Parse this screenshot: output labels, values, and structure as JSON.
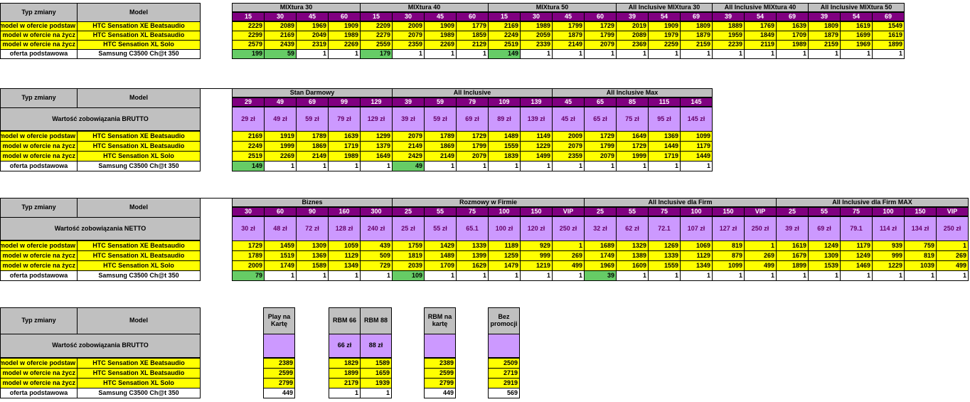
{
  "rowlabels": {
    "typ_zmiany": "Typ zmiany",
    "model": "Model",
    "wartosc_brutto": "Wartość zobowiązania BRUTTO",
    "wartosc_netto": "Wartość zobowiązania NETTO",
    "row1_type": "y model w ofercie podstaw",
    "row2_type": "y model w ofercie na życz",
    "row3_type": "y model w ofercie na życz",
    "row4_type": "oferta podstawowa",
    "row1_model": "HTC Sensation XE Beatsaudio",
    "row2_model": "HTC Sensation XL Beatsaudio",
    "row3_model": "HTC Sensation XL Solo",
    "row4_model": "Samsung C3500 Ch@t 350"
  },
  "s1": {
    "groups": [
      "MIXtura 30",
      "MIXtura 40",
      "MIXtura 50",
      "All Inclusive MIXtura 30",
      "All Inclusive MIXtura 40",
      "All Inclusive MIXtura 50"
    ],
    "cols": [
      "15",
      "30",
      "45",
      "60",
      "15",
      "30",
      "45",
      "60",
      "15",
      "30",
      "45",
      "60",
      "39",
      "54",
      "69",
      "39",
      "54",
      "69",
      "39",
      "54",
      "69"
    ],
    "rows": [
      [
        "2229",
        "2089",
        "1969",
        "1909",
        "2209",
        "2009",
        "1909",
        "1779",
        "2169",
        "1989",
        "1799",
        "1729",
        "2019",
        "1909",
        "1809",
        "1889",
        "1769",
        "1639",
        "1809",
        "1619",
        "1549"
      ],
      [
        "2299",
        "2169",
        "2049",
        "1989",
        "2279",
        "2079",
        "1989",
        "1859",
        "2249",
        "2059",
        "1879",
        "1799",
        "2089",
        "1979",
        "1879",
        "1959",
        "1849",
        "1709",
        "1879",
        "1699",
        "1619"
      ],
      [
        "2579",
        "2439",
        "2319",
        "2269",
        "2559",
        "2359",
        "2269",
        "2129",
        "2519",
        "2339",
        "2149",
        "2079",
        "2369",
        "2259",
        "2159",
        "2239",
        "2119",
        "1989",
        "2159",
        "1969",
        "1899"
      ],
      [
        "199",
        "59",
        "1",
        "1",
        "179",
        "1",
        "1",
        "1",
        "149",
        "1",
        "1",
        "1",
        "1",
        "1",
        "1",
        "1",
        "1",
        "1",
        "1",
        "1",
        "1"
      ]
    ]
  },
  "s2": {
    "groups": [
      "Stan Darmowy",
      "All Inclusive",
      "All Inclusive Max"
    ],
    "cols": [
      "29",
      "49",
      "69",
      "99",
      "129",
      "39",
      "59",
      "79",
      "109",
      "139",
      "45",
      "65",
      "85",
      "115",
      "145"
    ],
    "prices": [
      "29 zł",
      "49 zł",
      "59 zł",
      "79 zł",
      "129 zł",
      "39 zł",
      "59 zł",
      "69 zł",
      "89 zł",
      "139 zł",
      "45 zł",
      "65 zł",
      "75 zł",
      "95 zł",
      "145 zł"
    ],
    "rows": [
      [
        "2169",
        "1919",
        "1789",
        "1639",
        "1299",
        "2079",
        "1789",
        "1729",
        "1489",
        "1149",
        "2009",
        "1729",
        "1649",
        "1369",
        "1099"
      ],
      [
        "2249",
        "1999",
        "1869",
        "1719",
        "1379",
        "2149",
        "1869",
        "1799",
        "1559",
        "1229",
        "2079",
        "1799",
        "1729",
        "1449",
        "1179"
      ],
      [
        "2519",
        "2269",
        "2149",
        "1989",
        "1649",
        "2429",
        "2149",
        "2079",
        "1839",
        "1499",
        "2359",
        "2079",
        "1999",
        "1719",
        "1449"
      ],
      [
        "149",
        "1",
        "1",
        "1",
        "1",
        "49",
        "1",
        "1",
        "1",
        "1",
        "1",
        "1",
        "1",
        "1",
        "1"
      ]
    ]
  },
  "s3": {
    "groups": [
      "Biznes",
      "Rozmowy w Firmie",
      "All Inclusive dla Firm",
      "All Inclusive dla Firm MAX"
    ],
    "cols": [
      "30",
      "60",
      "90",
      "160",
      "300",
      "25",
      "55",
      "75",
      "100",
      "150",
      "VIP",
      "25",
      "55",
      "75",
      "100",
      "150",
      "VIP",
      "25",
      "55",
      "75",
      "100",
      "150",
      "VIP"
    ],
    "prices": [
      "30 zł",
      "48 zł",
      "72 zł",
      "128 zł",
      "240 zł",
      "25 zł",
      "55 zł",
      "65.1",
      "100 zł",
      "120 zł",
      "250 zł",
      "32 zł",
      "62 zł",
      "72.1",
      "107 zł",
      "127 zł",
      "250 zł",
      "39 zł",
      "69 zł",
      "79.1",
      "114 zł",
      "134 zł",
      "250 zł"
    ],
    "rows": [
      [
        "1729",
        "1459",
        "1309",
        "1059",
        "439",
        "1759",
        "1429",
        "1339",
        "1189",
        "929",
        "1",
        "1689",
        "1329",
        "1269",
        "1069",
        "819",
        "1",
        "1619",
        "1249",
        "1179",
        "939",
        "759",
        "1"
      ],
      [
        "1789",
        "1519",
        "1369",
        "1129",
        "509",
        "1819",
        "1489",
        "1399",
        "1259",
        "999",
        "269",
        "1749",
        "1389",
        "1339",
        "1129",
        "879",
        "269",
        "1679",
        "1309",
        "1249",
        "999",
        "819",
        "269"
      ],
      [
        "2009",
        "1749",
        "1589",
        "1349",
        "729",
        "2039",
        "1709",
        "1629",
        "1479",
        "1219",
        "499",
        "1969",
        "1609",
        "1559",
        "1349",
        "1099",
        "499",
        "1899",
        "1539",
        "1469",
        "1229",
        "1039",
        "499"
      ],
      [
        "79",
        "1",
        "1",
        "1",
        "1",
        "109",
        "1",
        "1",
        "1",
        "1",
        "1",
        "39",
        "1",
        "1",
        "1",
        "1",
        "1",
        "1",
        "1",
        "1",
        "1",
        "1",
        "1"
      ]
    ]
  },
  "s4": {
    "cols": [
      "Play na Kartę",
      "RBM 66",
      "RBM 88",
      "RBM na kartę",
      "Bez promocji"
    ],
    "prices": [
      "",
      "66 zł",
      "88 zł",
      "",
      ""
    ],
    "rows": [
      [
        "2389",
        "1829",
        "1589",
        "2389",
        "2509"
      ],
      [
        "2599",
        "1899",
        "1659",
        "2599",
        "2719"
      ],
      [
        "2799",
        "2179",
        "1939",
        "2799",
        "2919"
      ],
      [
        "449",
        "1",
        "1",
        "449",
        "569"
      ]
    ]
  },
  "colors": {
    "header": "#c0c0c0",
    "yellow": "#ffff00",
    "purple": "#800080",
    "lavender": "#cc99ff",
    "green": "#66cc66"
  }
}
